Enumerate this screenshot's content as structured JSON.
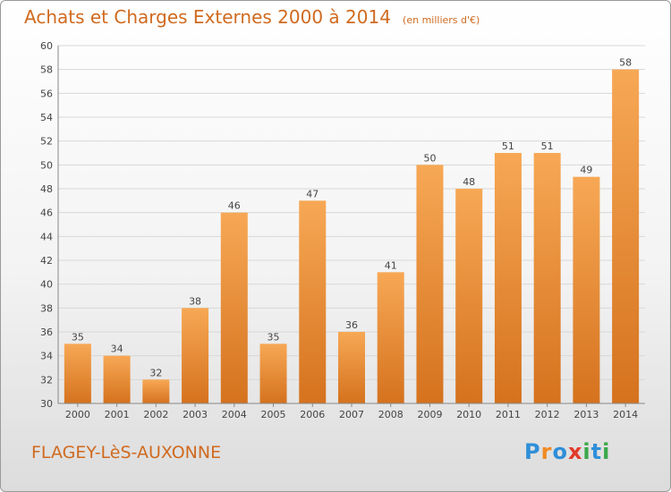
{
  "title": "Achats et Charges Externes 2000 à 2014",
  "subtitle": "(en milliers d'€)",
  "footer_left": "FLAGEY-LèS-AUXONNE",
  "logo_text": "Proxiti",
  "colors": {
    "title": "#d06a1f",
    "bar_light": "#f7a855",
    "bar_dark": "#d5721e",
    "grid": "#d8d8d8",
    "logo_letters": [
      "#2f8fd8",
      "#f08a24",
      "#2f8fd8",
      "#e23b2a",
      "#3aa84a",
      "#2f8fd8",
      "#3aa84a"
    ]
  },
  "chart_data": {
    "type": "bar",
    "title": "Achats et Charges Externes 2000 à 2014",
    "subtitle": "(en milliers d'€)",
    "categories": [
      "2000",
      "2001",
      "2002",
      "2003",
      "2004",
      "2005",
      "2006",
      "2007",
      "2008",
      "2009",
      "2010",
      "2011",
      "2012",
      "2013",
      "2014"
    ],
    "values": [
      35,
      34,
      32,
      38,
      46,
      35,
      47,
      36,
      41,
      50,
      48,
      51,
      51,
      49,
      58
    ],
    "ylim": [
      30,
      60
    ],
    "yticks": [
      30,
      32,
      34,
      36,
      38,
      40,
      42,
      44,
      46,
      48,
      50,
      52,
      54,
      56,
      58,
      60
    ],
    "grid": true,
    "data_labels": true
  }
}
